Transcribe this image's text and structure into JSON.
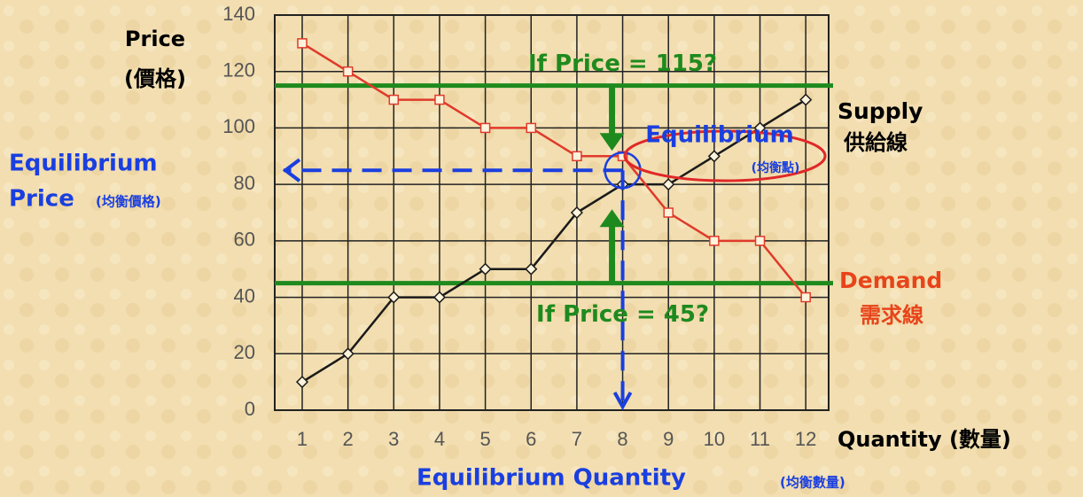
{
  "chart_data": {
    "type": "line",
    "y_label": [
      "Price",
      "(價格)"
    ],
    "x_label": "Quantity (數量)",
    "x": [
      1,
      2,
      3,
      4,
      5,
      6,
      7,
      8,
      9,
      10,
      11,
      12
    ],
    "xlim": [
      0.4,
      12.5
    ],
    "xticks": [
      1,
      2,
      3,
      4,
      5,
      6,
      7,
      8,
      9,
      10,
      11,
      12
    ],
    "ylim": [
      0,
      140
    ],
    "yticks": [
      0,
      20,
      40,
      60,
      80,
      100,
      120,
      140
    ],
    "grid": true,
    "series": [
      {
        "name": "Supply",
        "name_sub": "供給線",
        "color": "#1a1a1a",
        "marker": "diamond",
        "values": [
          10,
          20,
          40,
          40,
          50,
          50,
          70,
          80,
          80,
          90,
          100,
          110
        ]
      },
      {
        "name": "Demand",
        "name_sub": "需求線",
        "color": "#e03a2a",
        "marker": "square",
        "values": [
          130,
          120,
          110,
          110,
          100,
          100,
          90,
          90,
          70,
          60,
          60,
          40
        ]
      }
    ],
    "price_lines": [
      {
        "value": 115,
        "label": "If Price = 115?",
        "color": "#1e8a1e"
      },
      {
        "value": 45,
        "label": "If Price = 45?",
        "color": "#1e8a1e"
      }
    ],
    "equilibrium": {
      "x": 8,
      "y": 85,
      "color": "#1a3fe0",
      "label": "Equilibrium",
      "label_sub": "(均衡點)",
      "price_label": [
        "Equilibrium",
        "Price",
        "(均衡價格)"
      ],
      "quantity_label": [
        "Equilibrium Quantity",
        "(均衡數量)"
      ]
    }
  }
}
